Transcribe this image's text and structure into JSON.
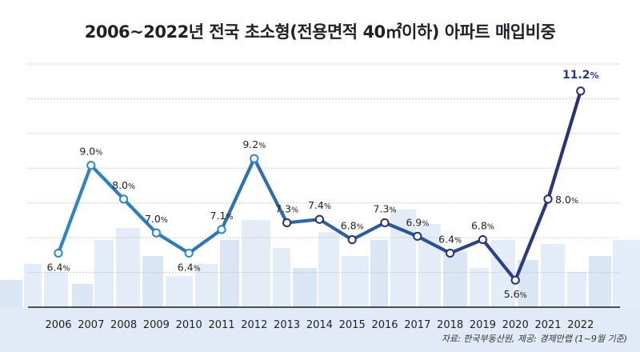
{
  "title": "2006~2022년 전국 초소형(전용면적 40㎡이하) 아파트 매입비중",
  "source": "자료: 한국부동산원, 제공: 경제만랩 (1~9월 기준)",
  "colors": {
    "line_start": "#2f86c8",
    "line_end": "#2b2f7a",
    "grid": "#b9b9c0",
    "axis": "#1a1a1a",
    "highlight_label": "#2b3a8c",
    "skyline": "#bcd1ea"
  },
  "chart_data": {
    "type": "line",
    "title": "2006~2022년 전국 초소형(전용면적 40㎡이하) 아파트 매입비중",
    "xlabel": "",
    "ylabel": "",
    "x": [
      "2006",
      "2007",
      "2008",
      "2009",
      "2010",
      "2011",
      "2012",
      "2013",
      "2014",
      "2015",
      "2016",
      "2017",
      "2018",
      "2019",
      "2020",
      "2021",
      "2022"
    ],
    "values": [
      6.4,
      9.0,
      8.0,
      7.0,
      6.4,
      7.1,
      9.2,
      7.3,
      7.4,
      6.8,
      7.3,
      6.9,
      6.4,
      6.8,
      5.6,
      8.0,
      11.2
    ],
    "unit": "%",
    "ylim": [
      4.8,
      12.0
    ],
    "grid": "horizontal-dotted",
    "highlight_last": true,
    "legend": "none"
  }
}
